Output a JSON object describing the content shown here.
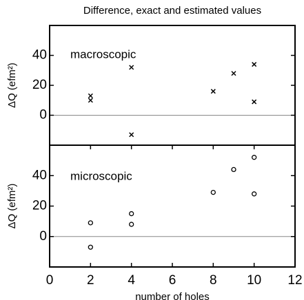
{
  "chart_data": [
    {
      "type": "scatter",
      "title": "Difference, exact and estimated values",
      "ylabel": "ΔQ (efm²)",
      "annotation": "macroscopic",
      "marker": "x",
      "color": "#000000",
      "x": [
        2,
        2,
        4,
        4,
        8,
        9,
        10,
        10
      ],
      "values": [
        13,
        10,
        32,
        -13,
        16,
        28,
        34,
        9
      ],
      "xlim": [
        0,
        12
      ],
      "ylim": [
        -20,
        60
      ],
      "yticks": [
        0,
        20,
        40
      ],
      "zero_line": true
    },
    {
      "type": "scatter",
      "ylabel": "ΔQ (efm²)",
      "xlabel": "number of holes",
      "annotation": "microscopic",
      "marker": "o",
      "color": "#000000",
      "x": [
        2,
        2,
        4,
        4,
        8,
        9,
        10,
        10
      ],
      "values": [
        9,
        -7,
        15,
        8,
        29,
        44,
        52,
        28
      ],
      "xlim": [
        0,
        12
      ],
      "xticks": [
        0,
        2,
        4,
        6,
        8,
        10,
        12
      ],
      "ylim": [
        -20,
        60
      ],
      "yticks": [
        0,
        20,
        40
      ],
      "zero_line": true
    }
  ]
}
